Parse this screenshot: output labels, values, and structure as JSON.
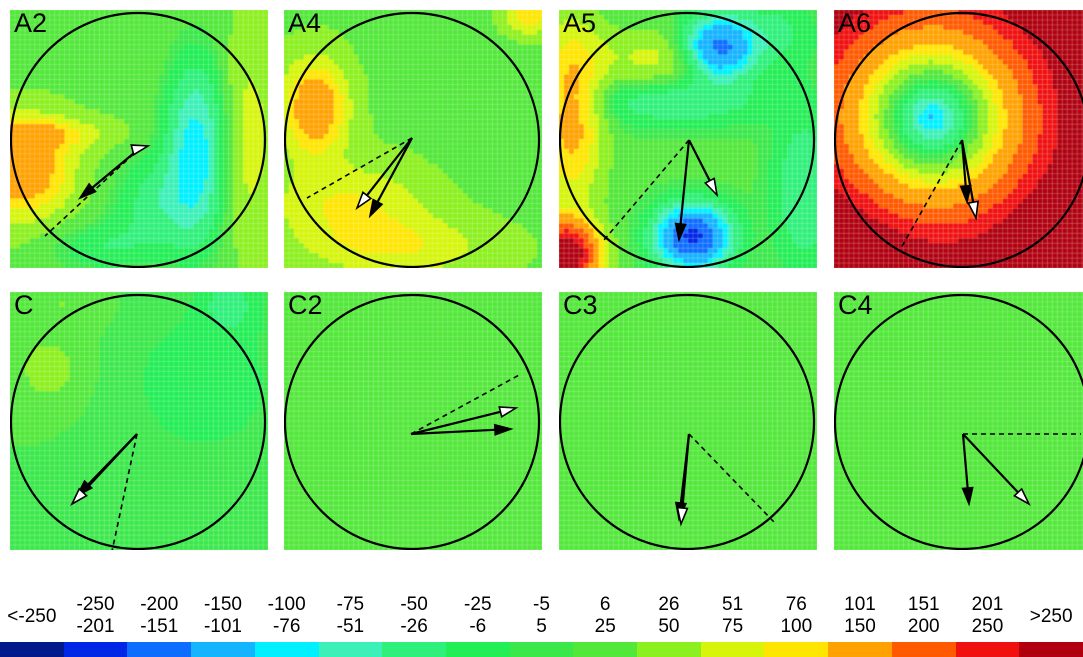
{
  "panels": [
    {
      "label": "A2",
      "field": "A2"
    },
    {
      "label": "A4",
      "field": "A4"
    },
    {
      "label": "A5",
      "field": "A5"
    },
    {
      "label": "A6",
      "field": "A6"
    },
    {
      "label": "C",
      "field": "C"
    },
    {
      "label": "C2",
      "field": "C2"
    },
    {
      "label": "C3",
      "field": "C3"
    },
    {
      "label": "C4",
      "field": "C4"
    }
  ],
  "legend": {
    "bins": [
      {
        "top": "<-250",
        "bottom": "",
        "color": "#001a8c"
      },
      {
        "top": "-250",
        "bottom": "-201",
        "color": "#0026e6"
      },
      {
        "top": "-200",
        "bottom": "-151",
        "color": "#0d6dff"
      },
      {
        "top": "-150",
        "bottom": "-101",
        "color": "#14b4ff"
      },
      {
        "top": "-100",
        "bottom": "-76",
        "color": "#00f0ff"
      },
      {
        "top": "-75",
        "bottom": "-51",
        "color": "#3cf0b8"
      },
      {
        "top": "-50",
        "bottom": "-26",
        "color": "#2ef07a"
      },
      {
        "top": "-25",
        "bottom": "-6",
        "color": "#22ee55"
      },
      {
        "top": "-5",
        "bottom": "5",
        "color": "#3ae84a"
      },
      {
        "top": "6",
        "bottom": "25",
        "color": "#52e83a"
      },
      {
        "top": "26",
        "bottom": "50",
        "color": "#8cf01e"
      },
      {
        "top": "51",
        "bottom": "75",
        "color": "#d6f50a"
      },
      {
        "top": "76",
        "bottom": "100",
        "color": "#ffe600"
      },
      {
        "top": "101",
        "bottom": "150",
        "color": "#ffa200"
      },
      {
        "top": "151",
        "bottom": "200",
        "color": "#ff5a00"
      },
      {
        "top": "201",
        "bottom": "250",
        "color": "#f01010"
      },
      {
        "top": ">250",
        "bottom": "",
        "color": "#b00010"
      }
    ]
  }
}
